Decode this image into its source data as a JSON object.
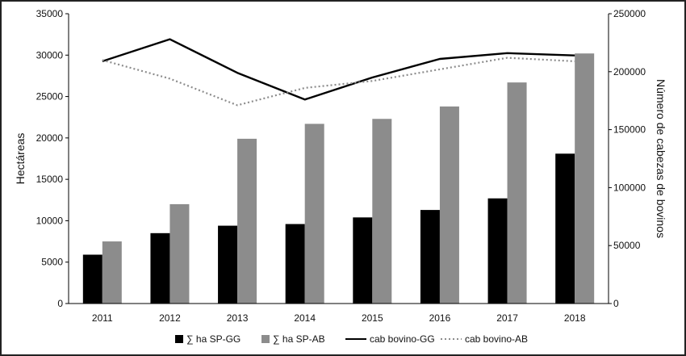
{
  "chart_data": {
    "type": "bar",
    "categories": [
      "2011",
      "2012",
      "2013",
      "2014",
      "2015",
      "2016",
      "2017",
      "2018"
    ],
    "ylabel": "Hectáreas",
    "y2label": "Número de cabezas de bovinos",
    "ylim": [
      0,
      35000
    ],
    "y2lim": [
      0,
      250000
    ],
    "yticks": [
      "0",
      "5000",
      "10000",
      "15000",
      "20000",
      "25000",
      "30000",
      "35000"
    ],
    "y2ticks": [
      "0",
      "50000",
      "100000",
      "150000",
      "200000",
      "250000"
    ],
    "grid": false,
    "legend_position": "bottom",
    "bars": [
      {
        "name": "∑ ha SP-GG",
        "color": "#000000",
        "values": [
          5900,
          8500,
          9400,
          9600,
          10400,
          11300,
          12700,
          18100
        ]
      },
      {
        "name": "∑ ha SP-AB",
        "color": "#8c8c8c",
        "values": [
          7500,
          12000,
          19900,
          21700,
          22300,
          23800,
          26700,
          30200
        ]
      }
    ],
    "lines": [
      {
        "name": "cab bovino-GG",
        "color": "#000000",
        "style": "solid",
        "axis": "right",
        "values": [
          209000,
          228000,
          199000,
          176000,
          195000,
          211000,
          216000,
          214000
        ]
      },
      {
        "name": "cab bovino-AB",
        "color": "#8c8c8c",
        "style": "dotted",
        "axis": "right",
        "values": [
          210000,
          194000,
          171000,
          186000,
          192000,
          202000,
          212000,
          209000
        ]
      }
    ]
  }
}
